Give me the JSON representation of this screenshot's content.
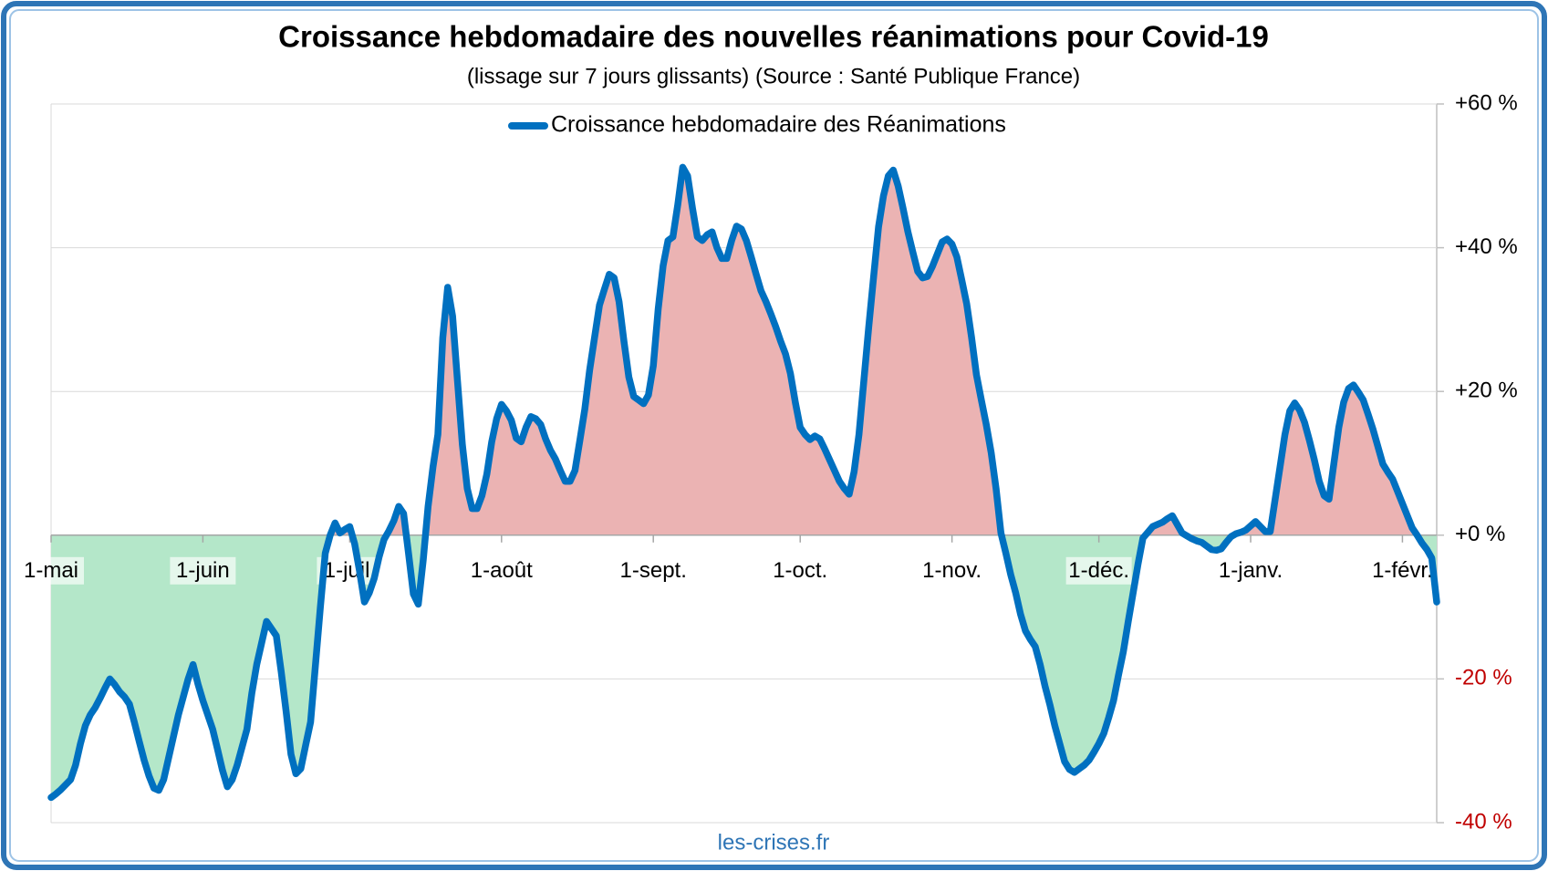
{
  "chart_data": {
    "type": "line",
    "title": "Croissance hebdomadaire des nouvelles réanimations pour Covid-19",
    "subtitle": "(lissage sur 7 jours glissants) (Source : Santé Publique France)",
    "source": "les-crises.fr",
    "legend": "top",
    "grid": true,
    "positive_fill": "#ebb3b3",
    "negative_fill": "#b4e7c9",
    "ylim": [
      -40,
      60
    ],
    "yticks": [
      {
        "value": -40,
        "label": "-40 %"
      },
      {
        "value": -20,
        "label": "-20 %"
      },
      {
        "value": 0,
        "label": "+0 %"
      },
      {
        "value": 20,
        "label": "+20 %"
      },
      {
        "value": 40,
        "label": "+40 %"
      },
      {
        "value": 60,
        "label": "+60 %"
      }
    ],
    "categories": [
      "1-mai",
      null,
      null,
      null,
      null,
      null,
      null,
      null,
      null,
      null,
      null,
      null,
      null,
      null,
      null,
      null,
      null,
      null,
      null,
      null,
      null,
      null,
      null,
      null,
      null,
      null,
      null,
      null,
      null,
      null,
      null,
      "1-juin",
      null,
      null,
      null,
      null,
      null,
      null,
      null,
      null,
      null,
      null,
      null,
      null,
      null,
      null,
      null,
      null,
      null,
      null,
      null,
      null,
      null,
      null,
      null,
      null,
      null,
      null,
      null,
      null,
      null,
      "1-juil.",
      null,
      null,
      null,
      null,
      null,
      null,
      null,
      null,
      null,
      null,
      null,
      null,
      null,
      null,
      null,
      null,
      null,
      null,
      null,
      null,
      null,
      null,
      null,
      null,
      null,
      null,
      null,
      null,
      null,
      null,
      "1-août",
      null,
      null,
      null,
      null,
      null,
      null,
      null,
      null,
      null,
      null,
      null,
      null,
      null,
      null,
      null,
      null,
      null,
      null,
      null,
      null,
      null,
      null,
      null,
      null,
      null,
      null,
      null,
      null,
      null,
      null,
      "1-sept.",
      null,
      null,
      null,
      null,
      null,
      null,
      null,
      null,
      null,
      null,
      null,
      null,
      null,
      null,
      null,
      null,
      null,
      null,
      null,
      null,
      null,
      null,
      null,
      null,
      null,
      null,
      null,
      null,
      null,
      "1-oct.",
      null,
      null,
      null,
      null,
      null,
      null,
      null,
      null,
      null,
      null,
      null,
      null,
      null,
      null,
      null,
      null,
      null,
      null,
      null,
      null,
      null,
      null,
      null,
      null,
      null,
      null,
      null,
      null,
      null,
      null,
      "1-nov.",
      null,
      null,
      null,
      null,
      null,
      null,
      null,
      null,
      null,
      null,
      null,
      null,
      null,
      null,
      null,
      null,
      null,
      null,
      null,
      null,
      null,
      null,
      null,
      null,
      null,
      null,
      null,
      null,
      null,
      "1-déc.",
      null,
      null,
      null,
      null,
      null,
      null,
      null,
      null,
      null,
      null,
      null,
      null,
      null,
      null,
      null,
      null,
      null,
      null,
      null,
      null,
      null,
      null,
      null,
      null,
      null,
      null,
      null,
      null,
      null,
      null,
      "1-janv.",
      null,
      null,
      null,
      null,
      null,
      null,
      null,
      null,
      null,
      null,
      null,
      null,
      null,
      null,
      null,
      null,
      null,
      null,
      null,
      null,
      null,
      null,
      null,
      null,
      null,
      null,
      null,
      null,
      null,
      null,
      "1-févr.",
      null,
      null,
      null,
      null,
      null,
      null,
      null
    ],
    "series": [
      {
        "name": "Croissance hebdomadaire des Réanimations",
        "color": "#0070c0",
        "values": [
          -36.5,
          -36,
          -35.4,
          -34.7,
          -34,
          -32,
          -29,
          -26.5,
          -25,
          -24,
          -22.7,
          -21.3,
          -20,
          -20.8,
          -21.8,
          -22.5,
          -23.5,
          -26,
          -28.7,
          -31.3,
          -33.5,
          -35.2,
          -35.5,
          -34,
          -31,
          -28,
          -25,
          -22.5,
          -20,
          -18,
          -20.7,
          -23,
          -25,
          -27,
          -29.8,
          -32.7,
          -35,
          -34,
          -32,
          -29.5,
          -27,
          -22,
          -18,
          -15,
          -12,
          -13,
          -14,
          -19,
          -24.5,
          -30.5,
          -33.2,
          -32.5,
          -29.2,
          -26,
          -18,
          -10,
          -2.5,
          0,
          1.7,
          0.3,
          0.8,
          1.2,
          -1.2,
          -5,
          -9.3,
          -8,
          -6,
          -3,
          -0.6,
          0.6,
          2,
          4,
          3,
          -2.5,
          -8.2,
          -9.6,
          -3.5,
          4,
          9.5,
          14,
          27.5,
          34.5,
          30.5,
          21.5,
          12.6,
          6.5,
          3.7,
          3.7,
          5.5,
          8.5,
          13,
          16.2,
          18.2,
          17.3,
          16,
          13.5,
          13,
          15,
          16.5,
          16.2,
          15.4,
          13.4,
          11.8,
          10.6,
          9,
          7.5,
          7.5,
          9,
          13.2,
          17.5,
          23,
          27.5,
          32,
          34.2,
          36.3,
          35.8,
          32.5,
          27,
          22,
          19.3,
          18.8,
          18.3,
          19.5,
          23.6,
          31.5,
          37.5,
          41,
          41.5,
          46,
          51.2,
          50,
          45.5,
          41.5,
          41,
          41.8,
          42.2,
          40,
          38.5,
          38.5,
          41,
          43,
          42.6,
          41,
          38.7,
          36.3,
          34,
          32.5,
          30.8,
          29,
          27,
          25.2,
          22.5,
          18.5,
          15,
          14,
          13.3,
          13.8,
          13.4,
          12,
          10.5,
          9,
          7.5,
          6.5,
          5.7,
          8.8,
          14,
          21.5,
          29,
          36,
          42.9,
          47.2,
          50,
          50.8,
          48.6,
          45.5,
          42.2,
          39.4,
          36.7,
          35.8,
          36,
          37.4,
          39.1,
          40.8,
          41.2,
          40.5,
          38.7,
          35.5,
          32.2,
          27.5,
          22.3,
          18.8,
          15.4,
          11.5,
          6.5,
          0.3,
          -2.5,
          -5.5,
          -8,
          -11,
          -13.3,
          -14.5,
          -15.5,
          -18,
          -21,
          -23.6,
          -26.5,
          -29,
          -31.5,
          -32.6,
          -33,
          -32.5,
          -32,
          -31.3,
          -30.2,
          -29,
          -27.6,
          -25.4,
          -23,
          -19.5,
          -16.2,
          -12,
          -8,
          -4,
          -0.4,
          0.4,
          1.2,
          1.5,
          1.8,
          2.3,
          2.7,
          1.5,
          0.3,
          -0.1,
          -0.5,
          -0.8,
          -1,
          -1.5,
          -2,
          -2.1,
          -1.9,
          -1,
          -0.2,
          0.2,
          0.4,
          0.7,
          1.3,
          1.9,
          1.2,
          0.5,
          0.5,
          5,
          9.5,
          14,
          17.3,
          18.4,
          17.4,
          15.7,
          13.2,
          10.5,
          7.5,
          5.5,
          5,
          10,
          15,
          18.5,
          20.4,
          20.9,
          19.9,
          18.8,
          16.8,
          14.7,
          12.3,
          9.9,
          8.8,
          7.8,
          6.1,
          4.4,
          2.7,
          1,
          0,
          -1.1,
          -2,
          -3.2,
          -9.3
        ]
      }
    ]
  }
}
